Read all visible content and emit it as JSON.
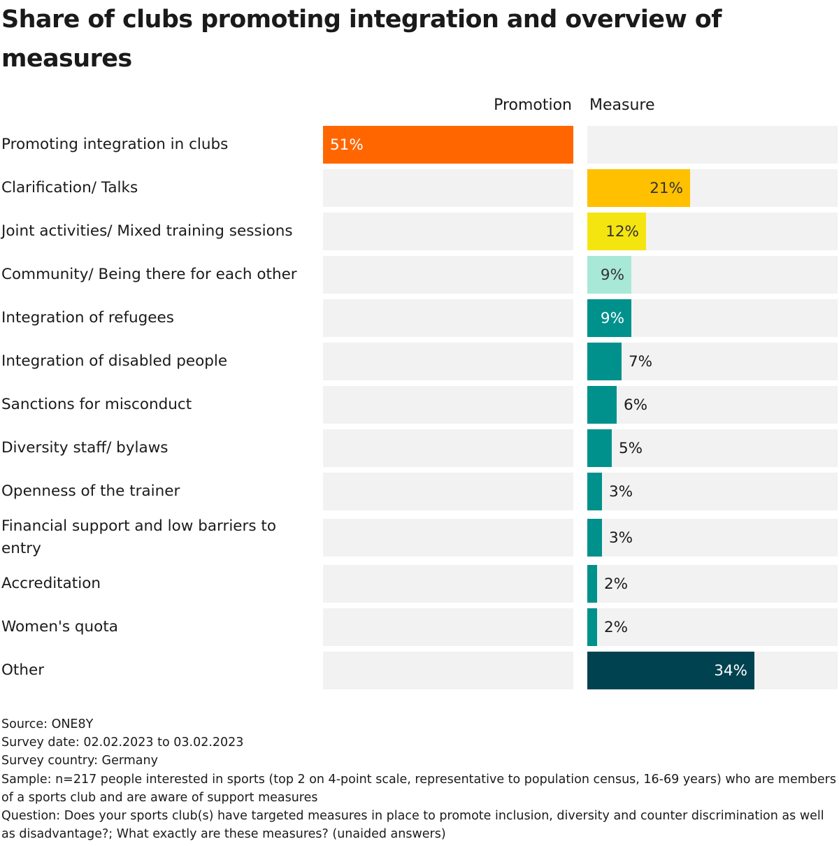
{
  "title": "Share of clubs promoting integration and overview of measures",
  "column_headers": {
    "promotion": "Promotion",
    "measure": "Measure"
  },
  "colors": {
    "track": "#f2f2f2",
    "promotion": "#ff6600",
    "other": "#004250"
  },
  "chart_data": {
    "type": "bar",
    "orientation": "horizontal",
    "title": "Share of clubs promoting integration and overview of measures",
    "xlabel": "",
    "ylabel": "",
    "xlim": [
      0,
      51
    ],
    "grid": false,
    "legend": "none",
    "columns": [
      "Promotion",
      "Measure"
    ],
    "categories": [
      "Promoting integration in clubs",
      "Clarification/ Talks",
      "Joint activities/ Mixed training sessions",
      "Community/ Being there for each other",
      "Integration of refugees",
      "Integration of disabled people",
      "Sanctions for misconduct",
      "Diversity staff/ bylaws",
      "Openness of the trainer",
      "Financial support and low barriers to entry",
      "Accreditation",
      "Women's quota",
      "Other"
    ],
    "series": [
      {
        "name": "Promotion",
        "values": [
          51,
          null,
          null,
          null,
          null,
          null,
          null,
          null,
          null,
          null,
          null,
          null,
          null
        ]
      },
      {
        "name": "Measure",
        "values": [
          null,
          21,
          12,
          9,
          9,
          7,
          6,
          5,
          3,
          3,
          2,
          2,
          34
        ]
      }
    ],
    "rows": [
      {
        "label": "Promoting integration in clubs",
        "column": "promotion",
        "value": 51,
        "value_label": "51%",
        "color": "#ff6600",
        "label_color": "#ffffff",
        "label_pos": "inside-left"
      },
      {
        "label": "Clarification/ Talks",
        "column": "measure",
        "value": 21,
        "value_label": "21%",
        "color": "#ffc000",
        "label_color": "#333333",
        "label_pos": "inside-right"
      },
      {
        "label": "Joint activities/ Mixed training sessions",
        "column": "measure",
        "value": 12,
        "value_label": "12%",
        "color": "#f4e511",
        "label_color": "#333333",
        "label_pos": "inside-right"
      },
      {
        "label": "Community/ Being there for each other",
        "column": "measure",
        "value": 9,
        "value_label": "9%",
        "color": "#a8e8d6",
        "label_color": "#333333",
        "label_pos": "inside-right"
      },
      {
        "label": "Integration of refugees",
        "column": "measure",
        "value": 9,
        "value_label": "9%",
        "color": "#00918c",
        "label_color": "#ffffff",
        "label_pos": "inside-right"
      },
      {
        "label": "Integration of disabled people",
        "column": "measure",
        "value": 7,
        "value_label": "7%",
        "color": "#00918c",
        "label_color": "#1a1a1a",
        "label_pos": "outside"
      },
      {
        "label": "Sanctions for misconduct",
        "column": "measure",
        "value": 6,
        "value_label": "6%",
        "color": "#00918c",
        "label_color": "#1a1a1a",
        "label_pos": "outside"
      },
      {
        "label": "Diversity staff/ bylaws",
        "column": "measure",
        "value": 5,
        "value_label": "5%",
        "color": "#00918c",
        "label_color": "#1a1a1a",
        "label_pos": "outside"
      },
      {
        "label": "Openness of the trainer",
        "column": "measure",
        "value": 3,
        "value_label": "3%",
        "color": "#00918c",
        "label_color": "#1a1a1a",
        "label_pos": "outside"
      },
      {
        "label": "Financial support and low barriers to entry",
        "column": "measure",
        "value": 3,
        "value_label": "3%",
        "color": "#00918c",
        "label_color": "#1a1a1a",
        "label_pos": "outside"
      },
      {
        "label": "Accreditation",
        "column": "measure",
        "value": 2,
        "value_label": "2%",
        "color": "#00918c",
        "label_color": "#1a1a1a",
        "label_pos": "outside"
      },
      {
        "label": "Women's quota",
        "column": "measure",
        "value": 2,
        "value_label": "2%",
        "color": "#00918c",
        "label_color": "#1a1a1a",
        "label_pos": "outside"
      },
      {
        "label": "Other",
        "column": "measure",
        "value": 34,
        "value_label": "34%",
        "color": "#004250",
        "label_color": "#ffffff",
        "label_pos": "inside-right"
      }
    ]
  },
  "footer": {
    "source": "Source: ONE8Y",
    "survey_date": "Survey date: 02.02.2023 to 03.02.2023",
    "survey_country": "Survey country: Germany",
    "sample": "Sample: n=217 people interested in sports (top 2 on 4-point scale, representative to population census, 16-69 years) who are members of a sports club and are aware of support measures",
    "question": "Question: Does your sports club(s) have targeted measures in place to promote inclusion, diversity and counter discrimination as well as disadvantage?; What exactly are these measures? (unaided answers)"
  }
}
